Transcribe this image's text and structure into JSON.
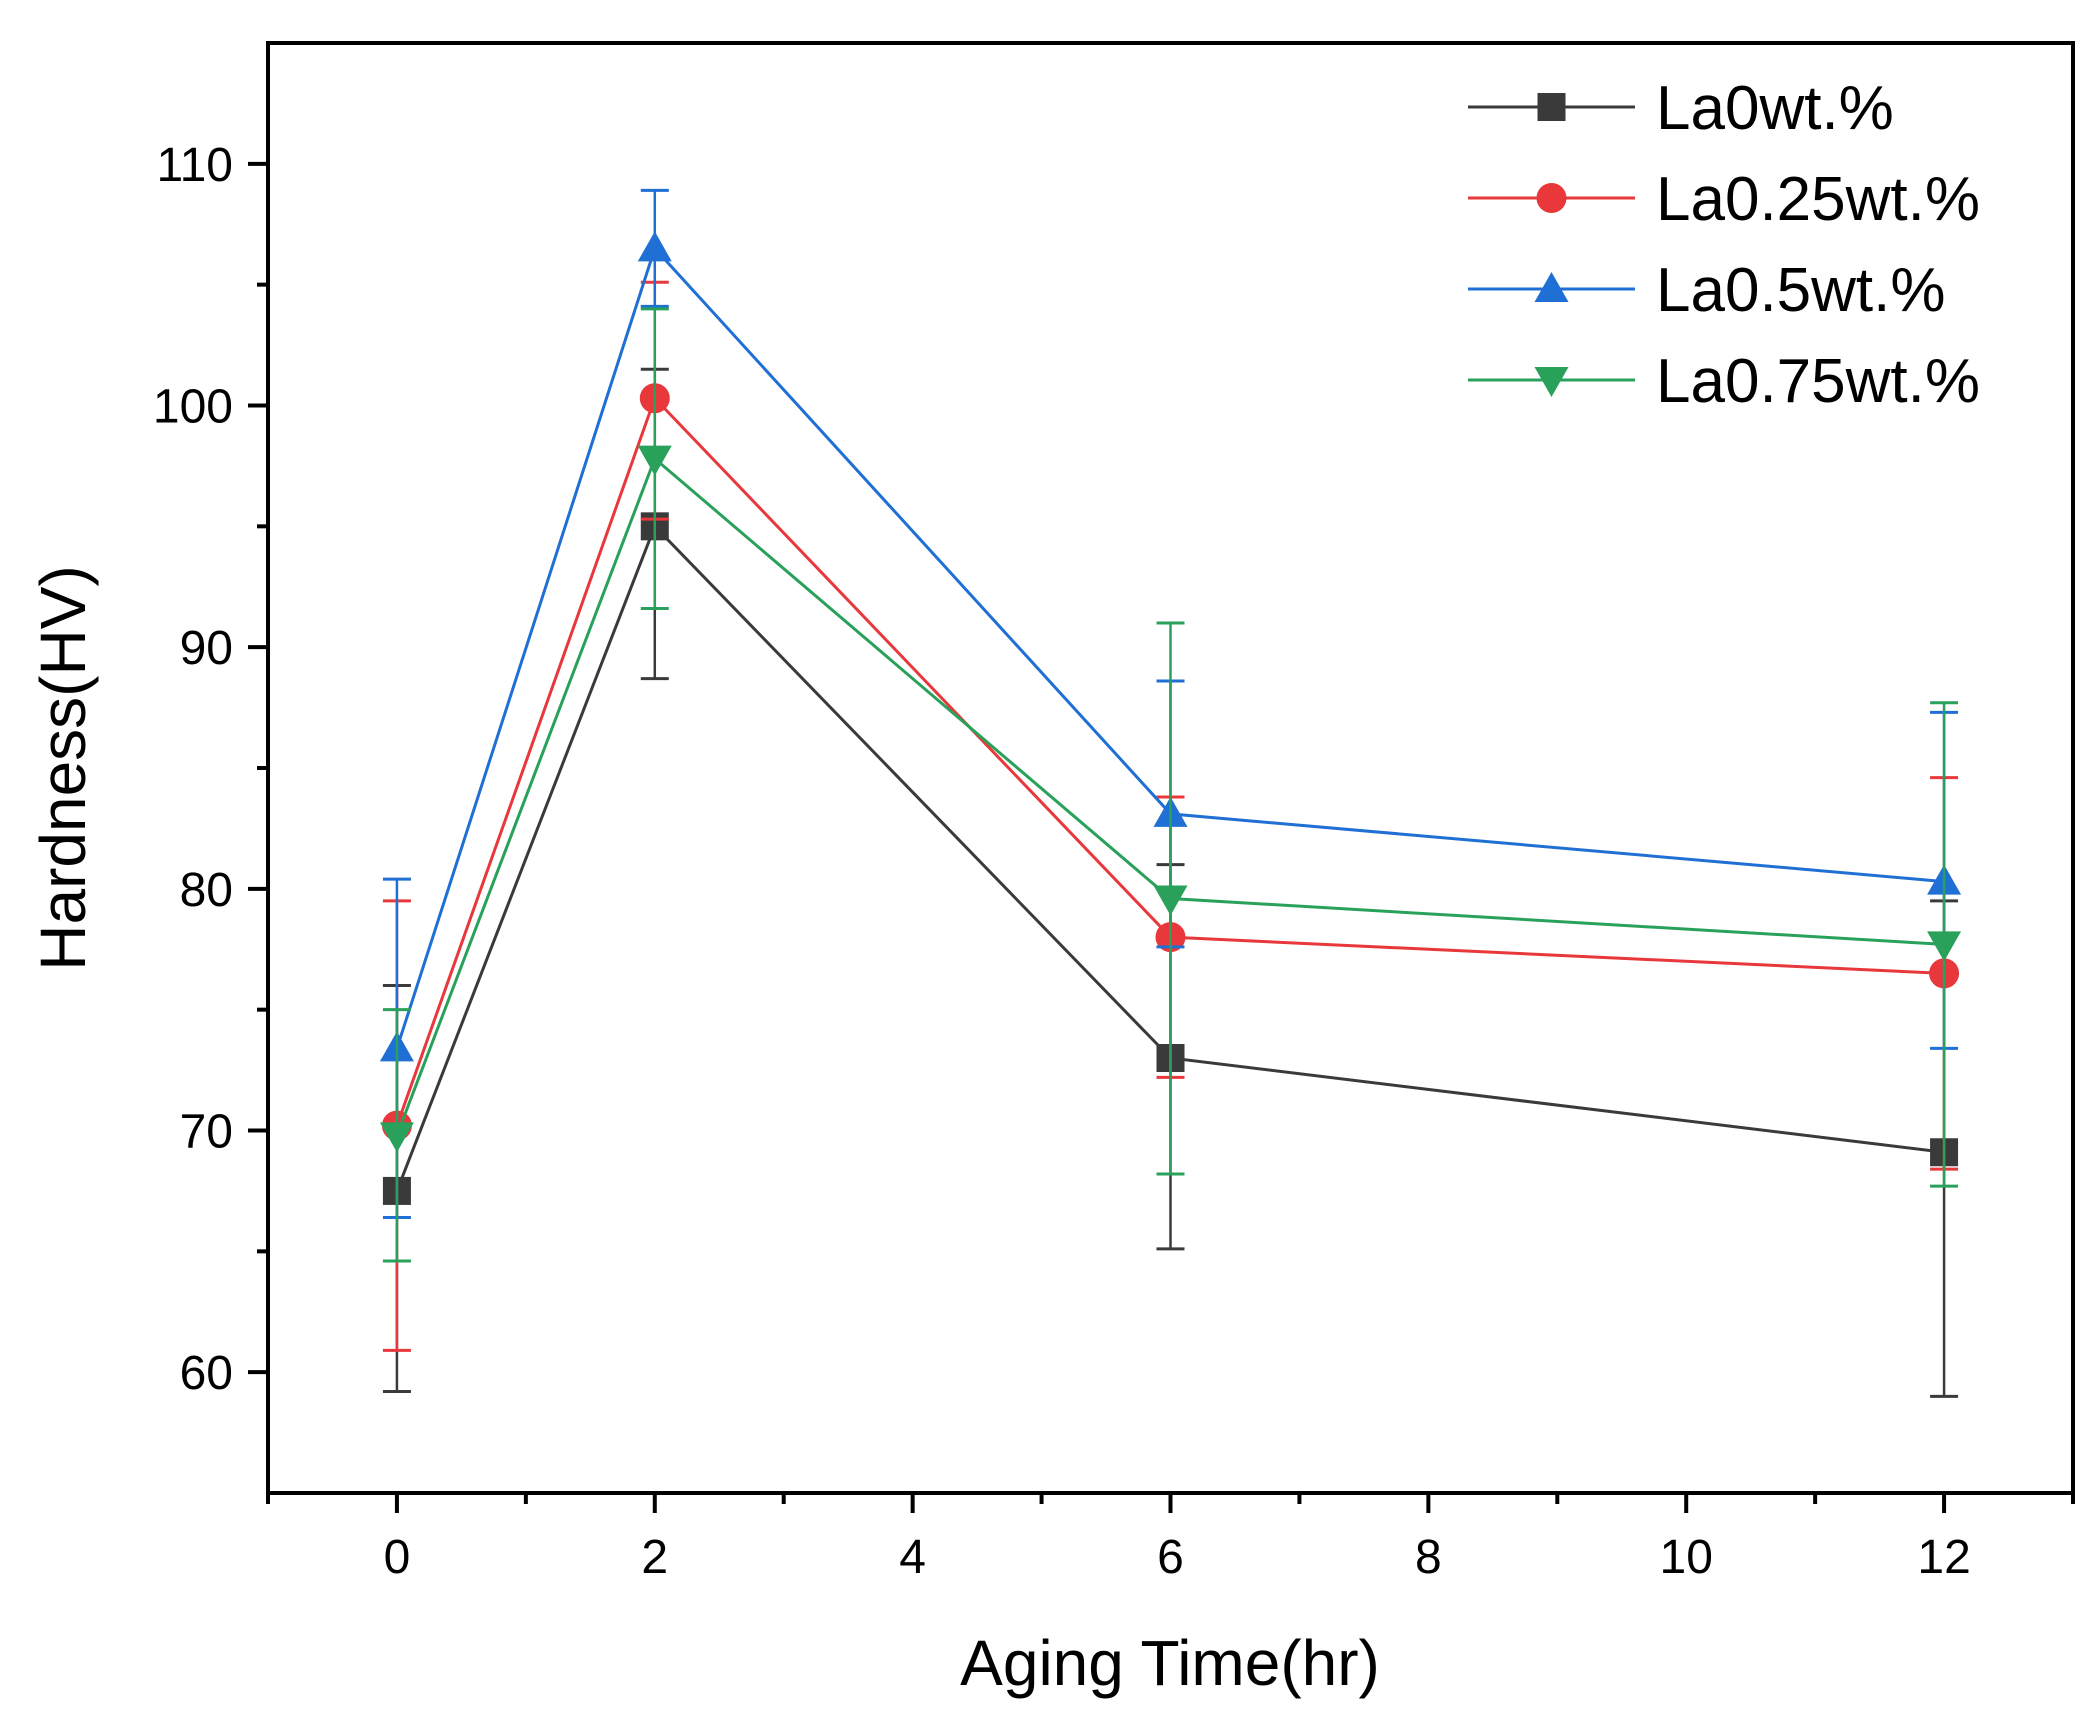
{
  "chart_data": {
    "type": "line",
    "title": "",
    "xlabel": "Aging Time(hr)",
    "ylabel": "Hardness(HV)",
    "xlim": [
      -1,
      13
    ],
    "ylim": [
      55,
      115
    ],
    "x_ticks": [
      0,
      2,
      4,
      6,
      8,
      10,
      12
    ],
    "x_tick_labels": [
      "0",
      "2",
      "4",
      "6",
      "8",
      "10",
      "12"
    ],
    "x_minor_ticks": [
      -1,
      1,
      3,
      5,
      7,
      9,
      11,
      13
    ],
    "y_ticks": [
      60,
      70,
      80,
      90,
      100,
      110
    ],
    "y_tick_labels": [
      "60",
      "70",
      "80",
      "90",
      "100",
      "110"
    ],
    "y_minor_ticks": [
      65,
      75,
      85,
      95,
      105
    ],
    "x": [
      0,
      2,
      6,
      12
    ],
    "grid": false,
    "legend_position": "top-right",
    "series": [
      {
        "name": "La0wt.%",
        "color": "#3a3a3a",
        "marker": "square",
        "values": [
          67.5,
          95.0,
          73.0,
          69.1
        ],
        "err_upper": [
          76.0,
          101.5,
          81.0,
          79.5
        ],
        "err_lower": [
          59.2,
          88.7,
          65.1,
          59.0
        ]
      },
      {
        "name": "La0.25wt.%",
        "color": "#e8383b",
        "marker": "circle",
        "values": [
          70.2,
          100.3,
          78.0,
          76.5
        ],
        "err_upper": [
          79.5,
          105.1,
          83.8,
          84.6
        ],
        "err_lower": [
          60.9,
          95.3,
          72.2,
          68.4
        ]
      },
      {
        "name": "La0.5wt.%",
        "color": "#1f6fd4",
        "marker": "triangle-up",
        "values": [
          73.4,
          106.5,
          83.1,
          80.3
        ],
        "err_upper": [
          80.4,
          108.9,
          88.6,
          87.3
        ],
        "err_lower": [
          66.4,
          104.1,
          77.6,
          73.4
        ]
      },
      {
        "name": "La0.75wt.%",
        "color": "#2aa15b",
        "marker": "triangle-down",
        "values": [
          69.8,
          97.8,
          79.6,
          77.7
        ],
        "err_upper": [
          75.0,
          104.0,
          91.0,
          87.7
        ],
        "err_lower": [
          64.6,
          91.6,
          68.2,
          67.7
        ]
      }
    ]
  }
}
